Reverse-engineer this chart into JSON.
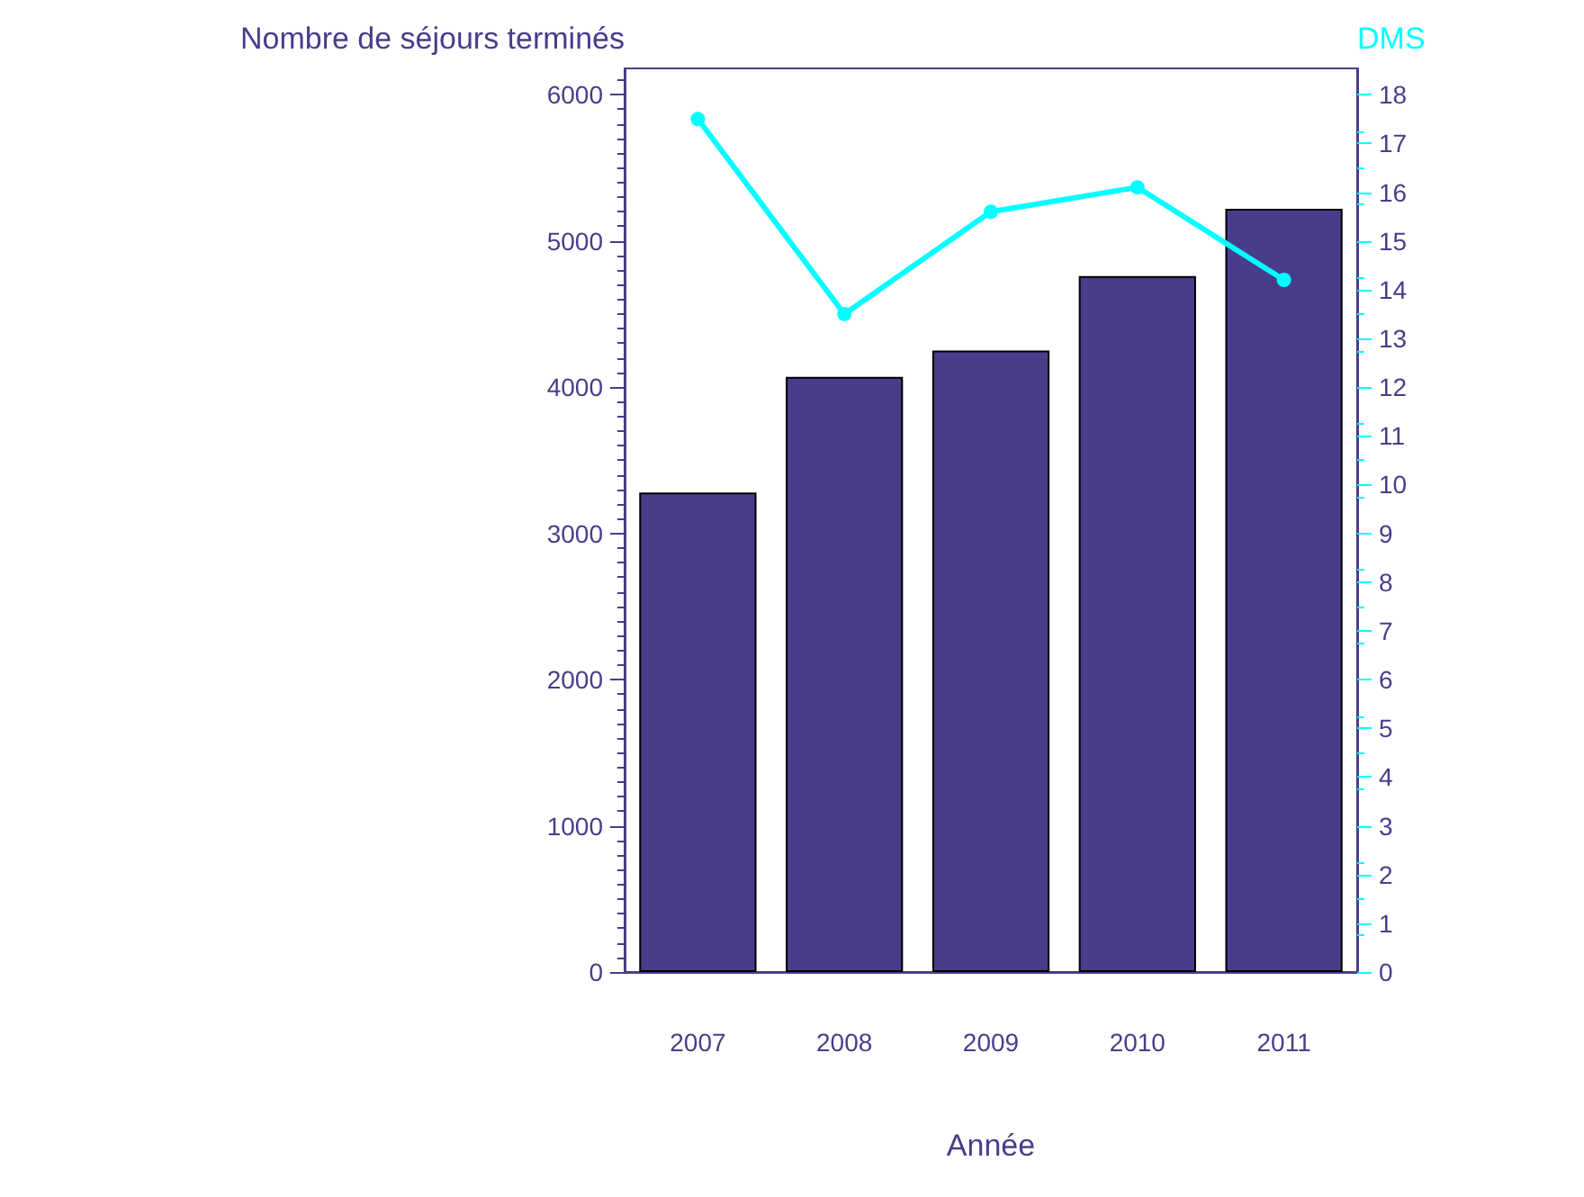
{
  "chart_data": {
    "type": "bar",
    "xlabel": "Année",
    "ylabel": "Nombre de séjours terminés",
    "y2label": "DMS",
    "categories": [
      "2007",
      "2008",
      "2009",
      "2010",
      "2011"
    ],
    "series": [
      {
        "color": "#483d8b",
        "values": [
          3280,
          4070,
          4250,
          4760,
          5220
        ]
      },
      {
        "type": "line",
        "axis": "y2",
        "color": "#00ffff",
        "values": [
          17.5,
          13.5,
          15.6,
          16.1,
          14.2
        ]
      }
    ],
    "ylim": [
      0,
      6180
    ],
    "yticks": [
      0,
      1000,
      2000,
      3000,
      4000,
      5000,
      6000
    ],
    "y2lim": [
      0,
      18.54
    ],
    "y2ticks": [
      0,
      1,
      2,
      3,
      4,
      5,
      6,
      7,
      8,
      9,
      10,
      11,
      12,
      13,
      14,
      15,
      16,
      17,
      18
    ],
    "grid": false,
    "marker": "circle",
    "line_style": "solid"
  }
}
